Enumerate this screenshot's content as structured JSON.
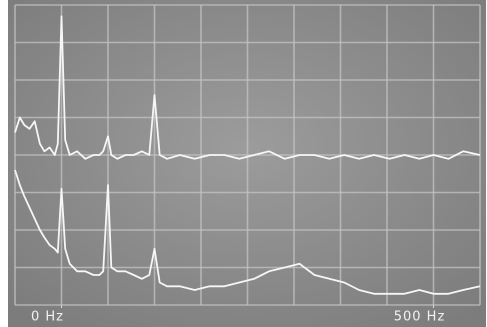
{
  "chart_data": {
    "type": "line",
    "x": [
      -62.5,
      -56,
      -50,
      -43,
      -36,
      -29,
      -23,
      -16,
      -9,
      -5,
      0,
      5,
      11,
      21,
      32,
      43,
      51,
      56,
      62.5,
      67,
      75,
      86,
      97,
      108,
      118,
      125,
      132,
      142,
      159,
      179,
      199,
      219,
      239,
      259,
      279,
      300,
      320,
      340,
      360,
      380,
      400,
      420,
      441,
      461,
      481,
      500,
      520,
      540,
      562.5
    ],
    "series": [
      {
        "color": "#f6f6f6",
        "values": [
          4.6,
          5.0,
          4.8,
          4.7,
          4.9,
          4.3,
          4.1,
          4.2,
          4.0,
          4.3,
          7.7,
          4.4,
          4.0,
          4.1,
          3.9,
          4.0,
          4.0,
          4.1,
          4.5,
          4.0,
          3.9,
          4.0,
          4.0,
          4.1,
          4.0,
          5.6,
          4.0,
          3.9,
          4.0,
          3.9,
          4.0,
          4.0,
          3.9,
          4.0,
          4.1,
          3.9,
          4.0,
          4.0,
          3.9,
          4.0,
          3.9,
          4.0,
          3.9,
          4.0,
          3.9,
          4.0,
          3.9,
          4.1,
          4.0
        ]
      },
      {
        "color": "#f6f6f6",
        "values": [
          3.6,
          3.2,
          2.9,
          2.6,
          2.3,
          2.0,
          1.8,
          1.6,
          1.5,
          1.4,
          3.1,
          1.5,
          1.1,
          0.9,
          0.9,
          0.8,
          0.8,
          0.9,
          3.2,
          1.0,
          0.9,
          0.9,
          0.8,
          0.7,
          0.8,
          1.5,
          0.6,
          0.5,
          0.5,
          0.4,
          0.5,
          0.5,
          0.6,
          0.7,
          0.9,
          1.0,
          1.1,
          0.8,
          0.7,
          0.6,
          0.4,
          0.3,
          0.3,
          0.3,
          0.4,
          0.3,
          0.3,
          0.4,
          0.5
        ]
      }
    ],
    "xlim": [
      -62.5,
      562.5
    ],
    "ylim": [
      0,
      8
    ],
    "xticks": [
      {
        "value": 0,
        "label": "0 Hz"
      },
      {
        "value": 500,
        "label": "500 Hz"
      }
    ]
  }
}
